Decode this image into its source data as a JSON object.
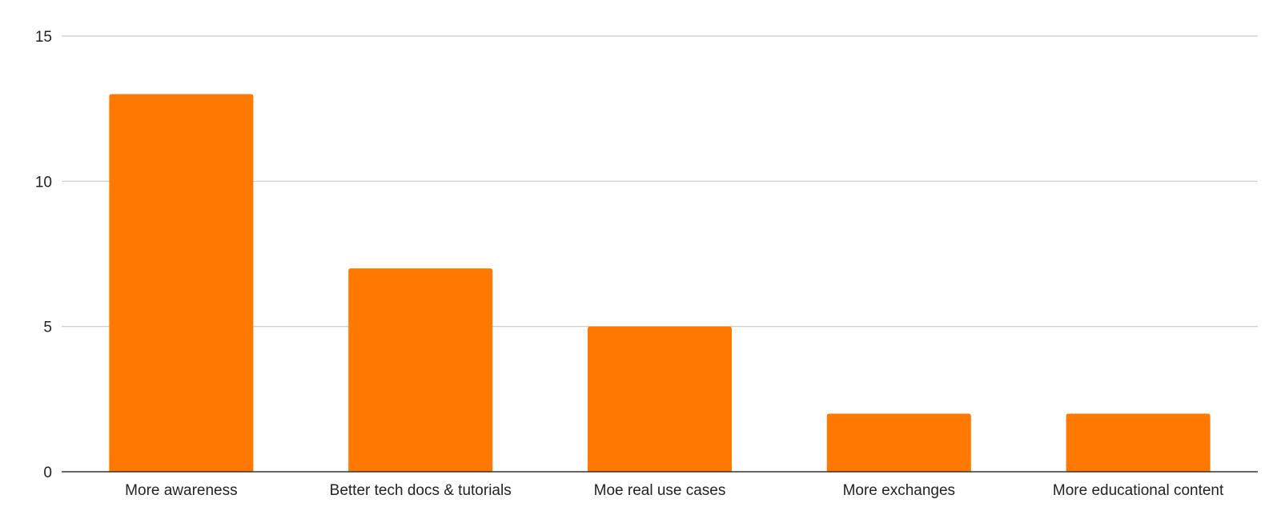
{
  "chart_data": {
    "type": "bar",
    "title": "",
    "xlabel": "",
    "ylabel": "",
    "categories": [
      "More awareness",
      "Better tech docs & tutorials",
      "Moe real use cases",
      "More exchanges",
      "More educational content"
    ],
    "values": [
      13,
      7,
      5,
      2,
      2
    ],
    "ylim": [
      0,
      15
    ],
    "yticks": [
      0,
      5,
      10,
      15
    ],
    "ytick_labels": [
      "0",
      "5",
      "10",
      "15"
    ],
    "grid": true,
    "legend": "none",
    "colors": {
      "bar": "#ff7800",
      "grid": "#c8c8c8",
      "axis": "#333333",
      "text": "#222222"
    }
  }
}
